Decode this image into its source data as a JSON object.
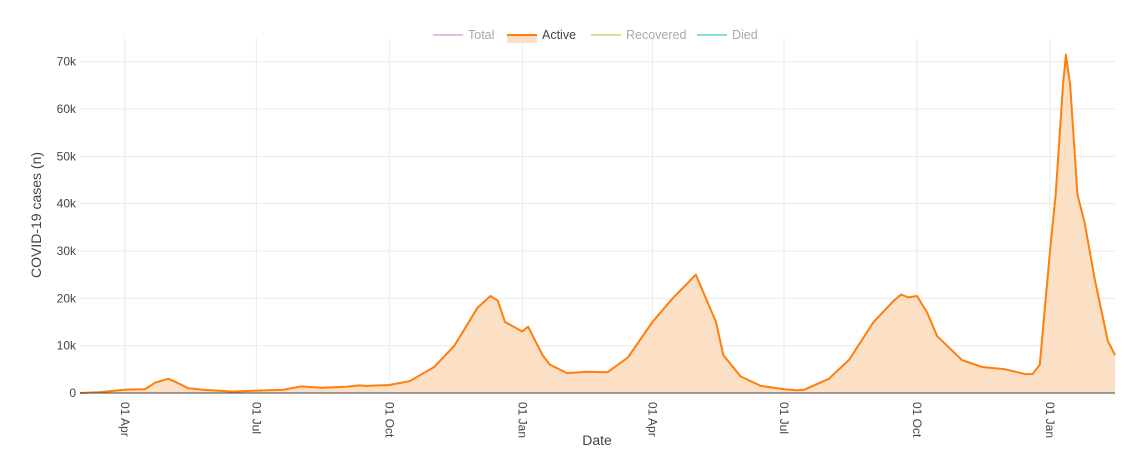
{
  "chart_data": {
    "type": "area",
    "xlabel": "Date",
    "ylabel": "COVID-19 cases (n)",
    "ylim": [
      0,
      75000
    ],
    "yticks": [
      0,
      10000,
      20000,
      30000,
      40000,
      50000,
      60000,
      70000
    ],
    "ytick_labels": [
      "0",
      "10k",
      "20k",
      "30k",
      "40k",
      "50k",
      "60k",
      "70k"
    ],
    "xlim": [
      "2020-03-01",
      "2022-02-15"
    ],
    "xticks": [
      "2020-04-01",
      "2020-07-01",
      "2020-10-01",
      "2021-01-01",
      "2021-04-01",
      "2021-07-01",
      "2021-10-01",
      "2022-01-01"
    ],
    "xtick_labels": [
      "01 Apr",
      "01 Jul",
      "01 Oct",
      "01 Jan",
      "01 Apr",
      "01 Jul",
      "01 Oct",
      "01 Jan"
    ],
    "grid": true,
    "legend_position": "top-center",
    "legend": [
      {
        "name": "Total",
        "color": "#e377c2",
        "active": false
      },
      {
        "name": "Active",
        "color": "#ff7f0e",
        "active": true
      },
      {
        "name": "Recovered",
        "color": "#bcbd22",
        "active": false
      },
      {
        "name": "Died",
        "color": "#17becf",
        "active": false
      }
    ],
    "series": [
      {
        "name": "Active",
        "color": "#ff7f0e",
        "fill": "#fce0c6",
        "x": [
          "2020-03-01",
          "2020-03-15",
          "2020-04-01",
          "2020-04-15",
          "2020-04-22",
          "2020-05-01",
          "2020-05-05",
          "2020-05-15",
          "2020-05-25",
          "2020-06-15",
          "2020-07-01",
          "2020-07-20",
          "2020-08-01",
          "2020-08-15",
          "2020-09-01",
          "2020-09-10",
          "2020-09-15",
          "2020-10-01",
          "2020-10-15",
          "2020-11-01",
          "2020-11-15",
          "2020-12-01",
          "2020-12-10",
          "2020-12-15",
          "2020-12-20",
          "2021-01-01",
          "2021-01-05",
          "2021-01-10",
          "2021-01-15",
          "2021-01-20",
          "2021-02-01",
          "2021-02-15",
          "2021-03-01",
          "2021-03-15",
          "2021-04-01",
          "2021-04-15",
          "2021-05-01",
          "2021-05-15",
          "2021-05-20",
          "2021-06-01",
          "2021-06-15",
          "2021-07-01",
          "2021-07-10",
          "2021-07-15",
          "2021-08-01",
          "2021-08-15",
          "2021-09-01",
          "2021-09-15",
          "2021-09-20",
          "2021-09-25",
          "2021-10-01",
          "2021-10-08",
          "2021-10-15",
          "2021-11-01",
          "2021-11-15",
          "2021-12-01",
          "2021-12-15",
          "2021-12-20",
          "2021-12-25",
          "2022-01-01",
          "2022-01-05",
          "2022-01-10",
          "2022-01-12",
          "2022-01-15",
          "2022-01-20",
          "2022-01-25",
          "2022-02-01",
          "2022-02-10",
          "2022-02-15"
        ],
        "y": [
          0,
          200,
          700,
          800,
          2200,
          3000,
          2500,
          1000,
          700,
          300,
          500,
          700,
          1400,
          1100,
          1300,
          1600,
          1500,
          1700,
          2500,
          5500,
          10000,
          18000,
          20500,
          19500,
          15000,
          13000,
          14000,
          11000,
          8000,
          6000,
          4200,
          4500,
          4400,
          7500,
          15000,
          20000,
          25000,
          15000,
          8000,
          3500,
          1500,
          800,
          600,
          700,
          3000,
          7000,
          15000,
          19500,
          20800,
          20200,
          20500,
          17000,
          12000,
          7000,
          5500,
          5000,
          4000,
          4000,
          6000,
          30000,
          42000,
          65000,
          71500,
          65000,
          42000,
          36000,
          24000,
          11000,
          8000
        ]
      }
    ]
  }
}
